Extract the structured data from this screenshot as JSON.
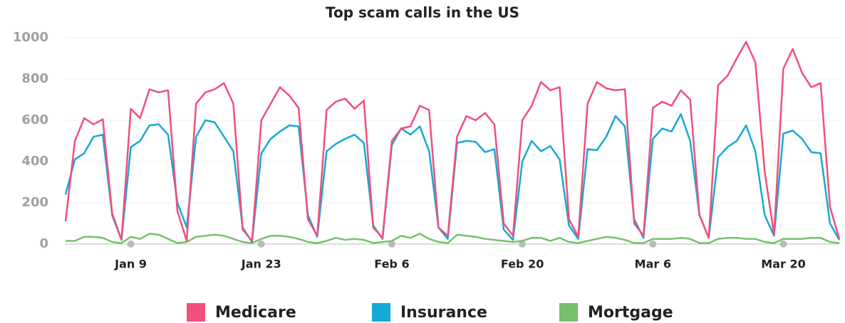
{
  "chart_data": {
    "type": "line",
    "title": "Top scam calls in the US",
    "categories": [
      null,
      null,
      null,
      null,
      null,
      null,
      null,
      "Jan 9",
      null,
      null,
      null,
      null,
      null,
      null,
      null,
      null,
      null,
      null,
      null,
      null,
      null,
      "Jan 23",
      null,
      null,
      null,
      null,
      null,
      null,
      null,
      null,
      null,
      null,
      null,
      null,
      null,
      "Feb 6",
      null,
      null,
      null,
      null,
      null,
      null,
      null,
      null,
      null,
      null,
      null,
      null,
      null,
      "Feb 20",
      null,
      null,
      null,
      null,
      null,
      null,
      null,
      null,
      null,
      null,
      null,
      null,
      null,
      "Mar 6",
      null,
      null,
      null,
      null,
      null,
      null,
      null,
      null,
      null,
      null,
      null,
      null,
      null,
      "Mar 20",
      null,
      null,
      null,
      null,
      null,
      null
    ],
    "series": [
      {
        "name": "Medicare",
        "color": "#f0507a",
        "values": [
          110,
          500,
          610,
          580,
          605,
          150,
          20,
          655,
          610,
          750,
          735,
          745,
          160,
          15,
          680,
          735,
          750,
          780,
          680,
          70,
          15,
          600,
          680,
          760,
          720,
          660,
          120,
          40,
          650,
          690,
          705,
          655,
          695,
          80,
          30,
          500,
          560,
          570,
          670,
          650,
          80,
          40,
          520,
          620,
          600,
          635,
          580,
          100,
          40,
          600,
          670,
          785,
          745,
          760,
          120,
          35,
          680,
          785,
          755,
          745,
          750,
          100,
          40,
          660,
          690,
          670,
          745,
          700,
          140,
          30,
          770,
          815,
          900,
          980,
          880,
          350,
          45,
          850,
          945,
          830,
          760,
          780,
          180,
          25
        ]
      },
      {
        "name": "Insurance",
        "color": "#15a9d6",
        "values": [
          240,
          410,
          440,
          520,
          530,
          140,
          20,
          470,
          500,
          575,
          580,
          530,
          200,
          80,
          520,
          600,
          590,
          520,
          450,
          80,
          10,
          440,
          510,
          545,
          575,
          570,
          140,
          35,
          450,
          485,
          510,
          530,
          490,
          90,
          25,
          480,
          560,
          530,
          570,
          450,
          80,
          25,
          490,
          500,
          495,
          445,
          460,
          70,
          20,
          400,
          500,
          450,
          475,
          410,
          90,
          25,
          460,
          455,
          520,
          620,
          570,
          120,
          30,
          510,
          560,
          545,
          630,
          500,
          140,
          30,
          420,
          470,
          500,
          575,
          450,
          140,
          40,
          535,
          550,
          510,
          445,
          440,
          100,
          20
        ]
      },
      {
        "name": "Mortgage",
        "color": "#77c06e",
        "values": [
          15,
          15,
          35,
          35,
          30,
          10,
          5,
          35,
          25,
          50,
          45,
          25,
          5,
          10,
          35,
          40,
          45,
          40,
          25,
          10,
          5,
          25,
          40,
          40,
          35,
          25,
          10,
          5,
          15,
          30,
          20,
          25,
          20,
          5,
          10,
          15,
          40,
          30,
          50,
          25,
          10,
          5,
          45,
          40,
          35,
          25,
          20,
          15,
          10,
          15,
          30,
          30,
          15,
          30,
          10,
          5,
          15,
          25,
          35,
          30,
          20,
          5,
          5,
          25,
          25,
          25,
          30,
          25,
          5,
          5,
          25,
          30,
          30,
          25,
          25,
          10,
          5,
          25,
          25,
          25,
          30,
          30,
          10,
          5
        ]
      }
    ],
    "ylim": [
      0,
      1000
    ],
    "yticks": [
      0,
      200,
      400,
      600,
      800,
      1000
    ],
    "grid": true
  }
}
